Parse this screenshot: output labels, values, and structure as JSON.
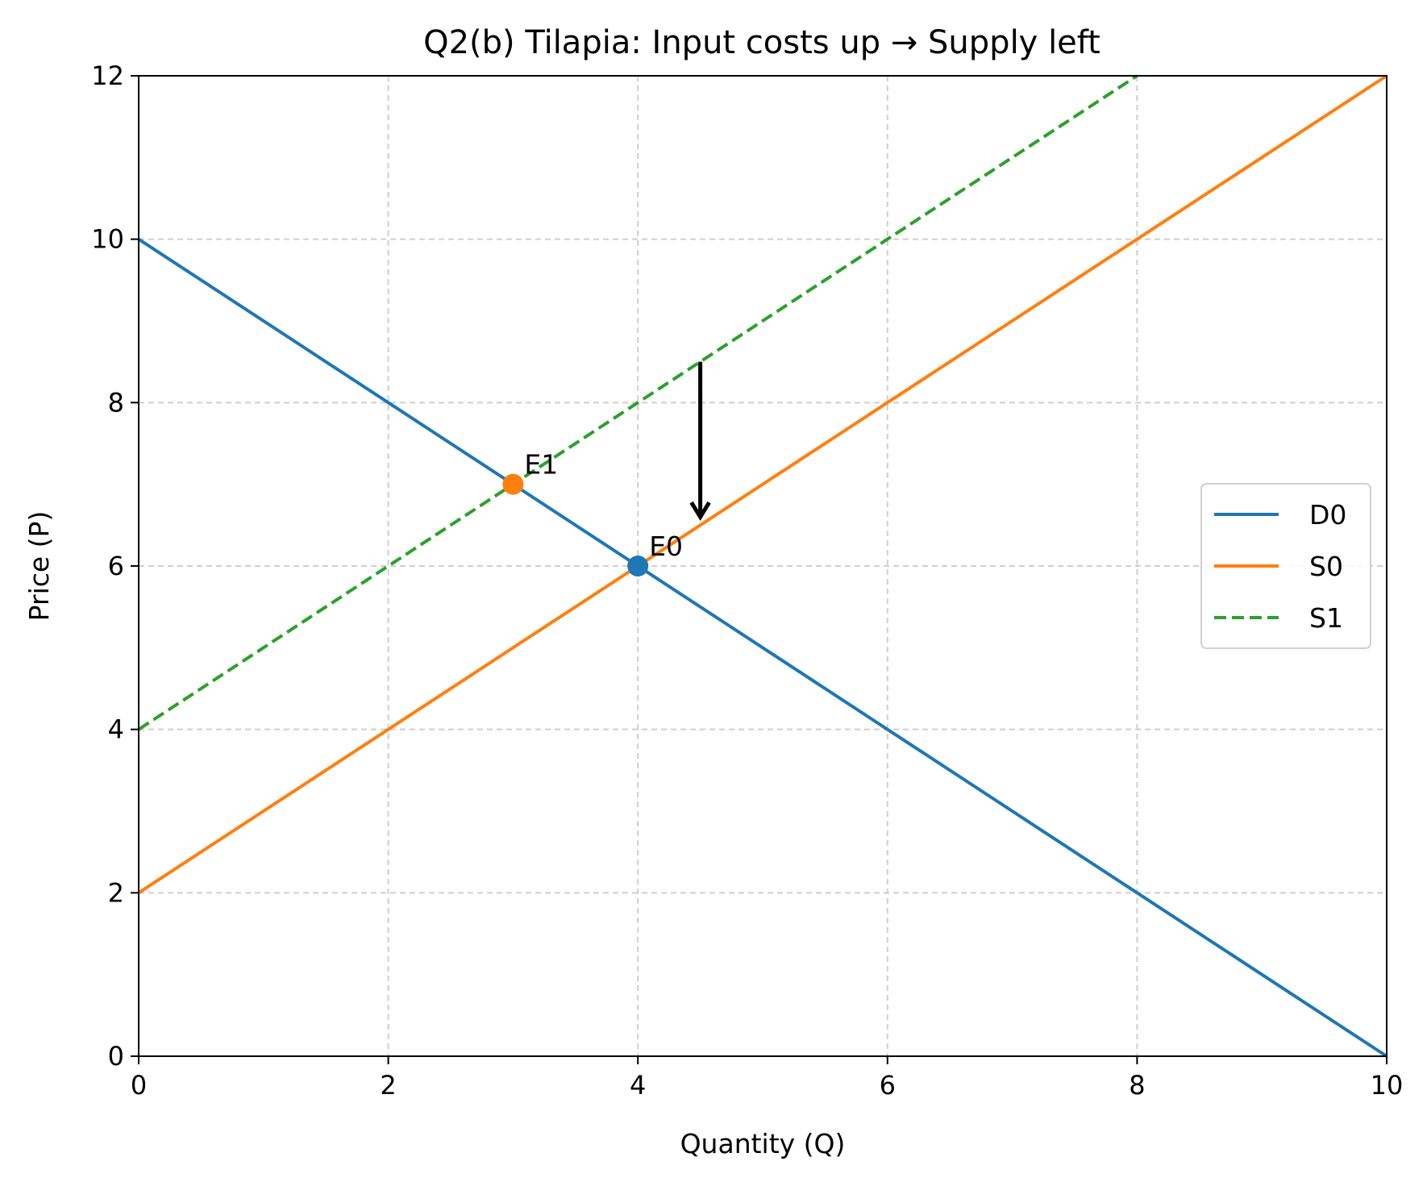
{
  "chart_data": {
    "type": "line",
    "title": "Q2(b) Tilapia: Input costs up → Supply left",
    "xlabel": "Quantity (Q)",
    "ylabel": "Price (P)",
    "xlim": [
      0,
      10
    ],
    "ylim": [
      0,
      12
    ],
    "xticks": [
      0,
      2,
      4,
      6,
      8,
      10
    ],
    "yticks": [
      0,
      2,
      4,
      6,
      8,
      10,
      12
    ],
    "grid": true,
    "legend_position": "center-right",
    "series": [
      {
        "name": "D0",
        "color": "#1f77b4",
        "style": "solid",
        "x": [
          0,
          10
        ],
        "y": [
          10,
          0
        ]
      },
      {
        "name": "S0",
        "color": "#ff7f0e",
        "style": "solid",
        "x": [
          0,
          10
        ],
        "y": [
          2,
          12
        ]
      },
      {
        "name": "S1",
        "color": "#2ca02c",
        "style": "dashed",
        "x": [
          0,
          8
        ],
        "y": [
          4,
          12
        ]
      }
    ],
    "points": [
      {
        "label": "E0",
        "x": 4,
        "y": 6,
        "color": "#1f77b4"
      },
      {
        "label": "E1",
        "x": 3,
        "y": 7,
        "color": "#ff7f0e"
      }
    ],
    "arrows": [
      {
        "from": [
          4.5,
          8.5
        ],
        "to": [
          4.5,
          6.6
        ],
        "color": "#000000"
      }
    ]
  }
}
